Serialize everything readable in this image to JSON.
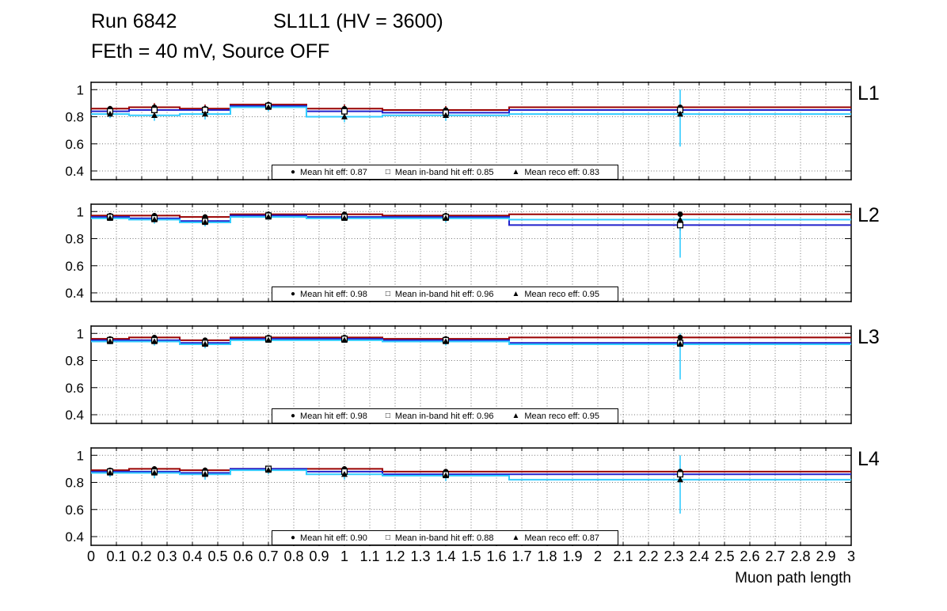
{
  "header": {
    "run": "Run 6842",
    "chamber": "SL1L1 (HV = 3600)",
    "conditions": "FEth = 40 mV, Source OFF"
  },
  "chart_data": {
    "type": "line",
    "title": "Run 6842 SL1L1 (HV = 3600) — FEth = 40 mV, Source OFF",
    "xlabel": "Muon path length",
    "ylabel": "",
    "grid": true,
    "x_axis": {
      "label": "Muon path length",
      "min": 0,
      "max": 3,
      "tick_step": 0.1,
      "tick_labels": [
        "0",
        "0.1",
        "0.2",
        "0.3",
        "0.4",
        "0.5",
        "0.6",
        "0.7",
        "0.8",
        "0.9",
        "1",
        "1.1",
        "1.2",
        "1.3",
        "1.4",
        "1.5",
        "1.6",
        "1.7",
        "1.8",
        "1.9",
        "2",
        "2.1",
        "2.2",
        "2.3",
        "2.4",
        "2.5",
        "2.6",
        "2.7",
        "2.8",
        "2.9",
        "3"
      ]
    },
    "y_axis": {
      "min": 0.33,
      "max": 1.06,
      "ticks": [
        0.4,
        0.6,
        0.8,
        1
      ]
    },
    "colors": {
      "hit": "#990000",
      "inband": "#2222cc",
      "reco": "#33ccff",
      "marker": "#000000"
    },
    "bin_edges": [
      0,
      0.15,
      0.35,
      0.55,
      0.85,
      1.15,
      1.65,
      3
    ],
    "panels": [
      {
        "label": "L1",
        "legend": [
          {
            "marker": "circle",
            "text": "Mean hit  eff: 0.87"
          },
          {
            "marker": "square",
            "text": "Mean in-band hit eff: 0.85"
          },
          {
            "marker": "triangle",
            "text": "Mean reco eff: 0.83"
          }
        ],
        "series": [
          {
            "name": "hit efficiency",
            "marker": "circle",
            "color_key": "hit",
            "values": [
              0.86,
              0.87,
              0.86,
              0.89,
              0.86,
              0.85,
              0.87
            ],
            "errors": [
              0.02,
              0.03,
              0.03,
              0.02,
              0.03,
              0.03,
              0.015
            ]
          },
          {
            "name": "in-band hit efficiency",
            "marker": "square",
            "color_key": "inband",
            "values": [
              0.84,
              0.85,
              0.85,
              0.88,
              0.84,
              0.83,
              0.85
            ],
            "errors": [
              0.02,
              0.03,
              0.03,
              0.02,
              0.03,
              0.03,
              0.03
            ]
          },
          {
            "name": "reco efficiency",
            "marker": "triangle",
            "color_key": "reco",
            "values": [
              0.82,
              0.81,
              0.82,
              0.87,
              0.8,
              0.81,
              0.82
            ],
            "errors": [
              0.03,
              0.04,
              0.04,
              0.03,
              0.04,
              0.04,
              0.24
            ]
          }
        ]
      },
      {
        "label": "L2",
        "legend": [
          {
            "marker": "circle",
            "text": "Mean hit  eff: 0.98"
          },
          {
            "marker": "square",
            "text": "Mean in-band hit eff: 0.96"
          },
          {
            "marker": "triangle",
            "text": "Mean reco eff: 0.95"
          }
        ],
        "series": [
          {
            "name": "hit efficiency",
            "marker": "circle",
            "color_key": "hit",
            "values": [
              0.97,
              0.97,
              0.96,
              0.98,
              0.98,
              0.97,
              0.98
            ],
            "errors": [
              0.01,
              0.02,
              0.02,
              0.01,
              0.01,
              0.02,
              0.01
            ]
          },
          {
            "name": "in-band hit efficiency",
            "marker": "square",
            "color_key": "inband",
            "values": [
              0.96,
              0.95,
              0.93,
              0.97,
              0.96,
              0.96,
              0.9
            ],
            "errors": [
              0.02,
              0.02,
              0.03,
              0.015,
              0.02,
              0.02,
              0.04
            ]
          },
          {
            "name": "reco efficiency",
            "marker": "triangle",
            "color_key": "reco",
            "values": [
              0.95,
              0.94,
              0.92,
              0.96,
              0.95,
              0.95,
              0.94
            ],
            "errors": [
              0.02,
              0.03,
              0.03,
              0.02,
              0.02,
              0.03,
              0.28
            ]
          }
        ]
      },
      {
        "label": "L3",
        "legend": [
          {
            "marker": "circle",
            "text": "Mean hit  eff: 0.98"
          },
          {
            "marker": "square",
            "text": "Mean in-band hit eff: 0.96"
          },
          {
            "marker": "triangle",
            "text": "Mean reco eff: 0.95"
          }
        ],
        "series": [
          {
            "name": "hit efficiency",
            "marker": "circle",
            "color_key": "hit",
            "values": [
              0.96,
              0.97,
              0.95,
              0.97,
              0.97,
              0.96,
              0.97
            ],
            "errors": [
              0.01,
              0.02,
              0.02,
              0.01,
              0.015,
              0.02,
              0.01
            ]
          },
          {
            "name": "in-band hit efficiency",
            "marker": "square",
            "color_key": "inband",
            "values": [
              0.95,
              0.95,
              0.93,
              0.96,
              0.96,
              0.95,
              0.93
            ],
            "errors": [
              0.02,
              0.02,
              0.03,
              0.015,
              0.02,
              0.02,
              0.03
            ]
          },
          {
            "name": "reco efficiency",
            "marker": "triangle",
            "color_key": "reco",
            "values": [
              0.94,
              0.94,
              0.92,
              0.95,
              0.95,
              0.94,
              0.92
            ],
            "errors": [
              0.02,
              0.03,
              0.03,
              0.02,
              0.02,
              0.03,
              0.26
            ]
          }
        ]
      },
      {
        "label": "L4",
        "legend": [
          {
            "marker": "circle",
            "text": "Mean hit  eff: 0.90"
          },
          {
            "marker": "square",
            "text": "Mean in-band hit eff: 0.88"
          },
          {
            "marker": "triangle",
            "text": "Mean reco eff: 0.87"
          }
        ],
        "series": [
          {
            "name": "hit efficiency",
            "marker": "circle",
            "color_key": "hit",
            "values": [
              0.89,
              0.9,
              0.89,
              0.9,
              0.9,
              0.88,
              0.88
            ],
            "errors": [
              0.015,
              0.02,
              0.02,
              0.015,
              0.02,
              0.02,
              0.01
            ]
          },
          {
            "name": "in-band hit efficiency",
            "marker": "square",
            "color_key": "inband",
            "values": [
              0.88,
              0.88,
              0.87,
              0.9,
              0.88,
              0.86,
              0.86
            ],
            "errors": [
              0.02,
              0.03,
              0.03,
              0.02,
              0.03,
              0.03,
              0.03
            ]
          },
          {
            "name": "reco efficiency",
            "marker": "triangle",
            "color_key": "reco",
            "values": [
              0.87,
              0.87,
              0.86,
              0.89,
              0.86,
              0.85,
              0.82
            ],
            "errors": [
              0.03,
              0.04,
              0.04,
              0.03,
              0.04,
              0.04,
              0.25
            ]
          }
        ]
      }
    ]
  }
}
